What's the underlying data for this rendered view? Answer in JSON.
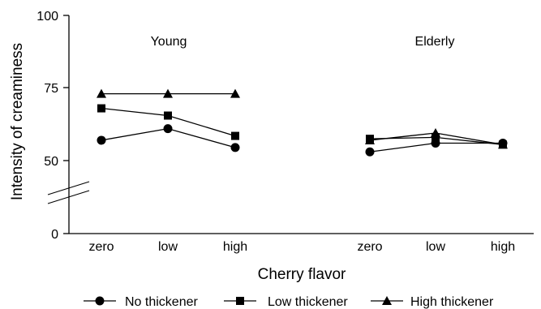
{
  "chart_data": {
    "type": "line",
    "title": "",
    "xlabel": "Cherry flavor",
    "ylabel": "Intensity of creaminess",
    "ylim": [
      0,
      100
    ],
    "y_axis_break": true,
    "y_ticks": [
      "0",
      "50",
      "75",
      "100"
    ],
    "groups": [
      {
        "label": "Young",
        "categories": [
          "zero",
          "low",
          "high"
        ],
        "series": [
          {
            "name": "No thickener",
            "marker": "circle",
            "values": [
              57,
              61,
              54.5
            ]
          },
          {
            "name": "Low thickener",
            "marker": "square",
            "values": [
              68,
              65.5,
              58.5
            ]
          },
          {
            "name": "High thickener",
            "marker": "triangle",
            "values": [
              73,
              73,
              73
            ]
          }
        ]
      },
      {
        "label": "Elderly",
        "categories": [
          "zero",
          "low",
          "high"
        ],
        "series": [
          {
            "name": "No thickener",
            "marker": "circle",
            "values": [
              53,
              56,
              56
            ]
          },
          {
            "name": "Low thickener",
            "marker": "square",
            "values": [
              57.5,
              58,
              55.5
            ]
          },
          {
            "name": "High thickener",
            "marker": "triangle",
            "values": [
              57,
              59.5,
              55.5
            ]
          }
        ]
      }
    ],
    "legend": {
      "position": "bottom",
      "entries": [
        {
          "name": "No thickener",
          "marker": "circle"
        },
        {
          "name": "Low thickener",
          "marker": "square"
        },
        {
          "name": "High thickener",
          "marker": "triangle"
        }
      ]
    },
    "colors": {
      "line": "#000000",
      "marker": "#000000"
    }
  }
}
